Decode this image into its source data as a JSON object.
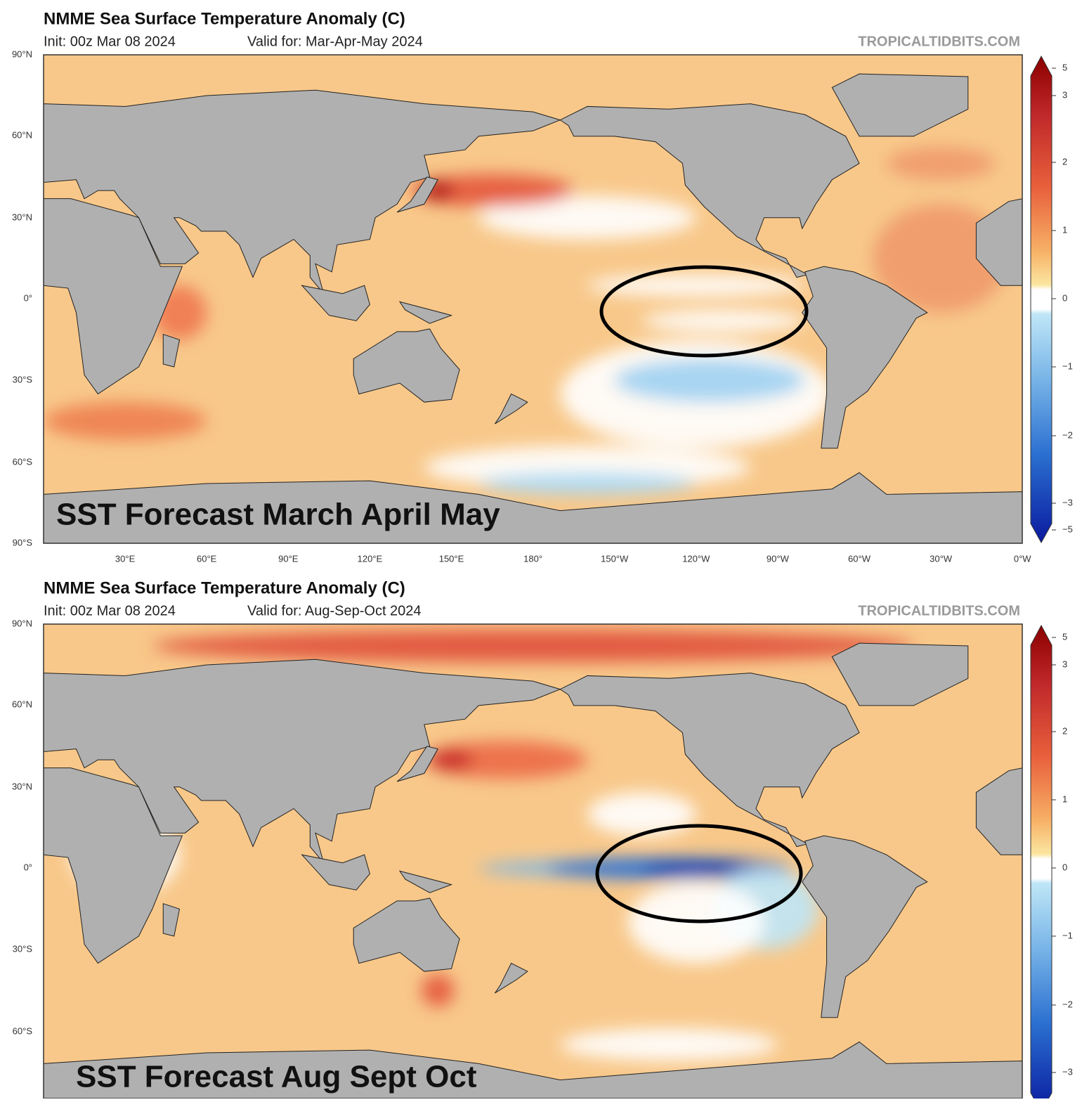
{
  "panels": [
    {
      "title": "NMME Sea Surface Temperature Anomaly (C)",
      "init": "Init: 00z Mar 08 2024",
      "valid": "Valid for: Mar-Apr-May 2024",
      "source": "TROPICALTIDBITS.COM",
      "overlay_label": "SST Forecast March April May",
      "lat_labels": [
        "90°N",
        "60°N",
        "30°N",
        "0°",
        "30°S",
        "60°S",
        "90°S"
      ],
      "lon_labels": [
        "30°E",
        "60°E",
        "90°E",
        "120°E",
        "150°E",
        "180°",
        "150°W",
        "120°W",
        "90°W",
        "60°W",
        "30°W",
        "0°W"
      ],
      "colorbar_labels": [
        "5",
        "3",
        "2",
        "1",
        "0",
        "−1",
        "−2",
        "−3",
        "−5"
      ]
    },
    {
      "title": "NMME Sea Surface Temperature Anomaly (C)",
      "init": "Init: 00z Mar 08 2024",
      "valid": "Valid for: Aug-Sep-Oct 2024",
      "source": "TROPICALTIDBITS.COM",
      "overlay_label": "SST Forecast Aug Sept Oct",
      "lat_labels": [
        "90°N",
        "60°N",
        "30°N",
        "0°",
        "30°S",
        "60°S"
      ],
      "colorbar_labels": [
        "5",
        "3",
        "2",
        "1",
        "0",
        "−1",
        "−2",
        "−3"
      ]
    }
  ]
}
